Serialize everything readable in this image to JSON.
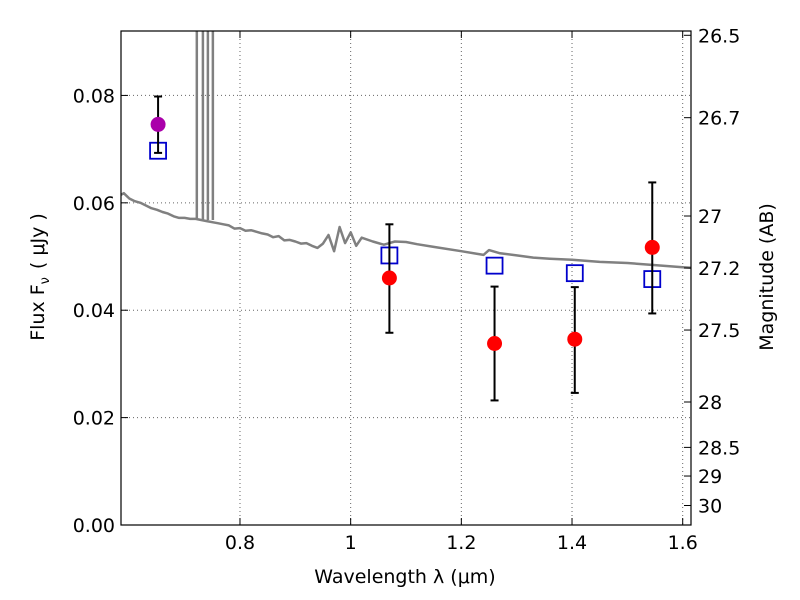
{
  "chart_data": {
    "type": "scatter",
    "xlabel": "Wavelength  λ (μm)",
    "ylabel_left": "Flux  F",
    "ylabel_left_sub": "ν",
    "ylabel_left_unit": "( μJy )",
    "ylabel_right": "Magnitude (AB)",
    "xlim": [
      0.585,
      1.615
    ],
    "ylim": [
      0.0,
      0.092
    ],
    "x_ticks": [
      0.8,
      1.0,
      1.2,
      1.4,
      1.6
    ],
    "x_tick_labels": [
      "0.8",
      "1",
      "1.2",
      "1.4",
      "1.6"
    ],
    "y_ticks": [
      0.0,
      0.02,
      0.04,
      0.06,
      0.08
    ],
    "y_tick_labels": [
      "0.00",
      "0.02",
      "0.04",
      "0.06",
      "0.08"
    ],
    "right_ticks_mag": [
      26.5,
      26.7,
      27,
      27.2,
      27.5,
      28,
      28.5,
      29,
      30
    ],
    "right_tick_labels": [
      "26.5",
      "26.7",
      "27",
      "27.2",
      "27.5",
      "28",
      "28.5",
      "29",
      "30"
    ],
    "grid": true,
    "series": [
      {
        "kind": "observed",
        "color": "#ff0000",
        "points": [
          {
            "x": 1.07,
            "y": 0.046,
            "yerr_low": 0.0358,
            "yerr_high": 0.056
          },
          {
            "x": 1.26,
            "y": 0.0338,
            "yerr_low": 0.0232,
            "yerr_high": 0.0444
          },
          {
            "x": 1.405,
            "y": 0.0346,
            "yerr_low": 0.0246,
            "yerr_high": 0.0443
          },
          {
            "x": 1.545,
            "y": 0.0517,
            "yerr_low": 0.0394,
            "yerr_high": 0.0638
          }
        ]
      },
      {
        "kind": "observed",
        "color": "#aa00aa",
        "points": [
          {
            "x": 0.652,
            "y": 0.0746,
            "yerr_low": 0.0693,
            "yerr_high": 0.0798
          }
        ]
      },
      {
        "kind": "model-photometry",
        "color": "#0000cc",
        "points": [
          {
            "x": 0.652,
            "y": 0.0697
          },
          {
            "x": 1.07,
            "y": 0.0502
          },
          {
            "x": 1.26,
            "y": 0.0483
          },
          {
            "x": 1.405,
            "y": 0.0469
          },
          {
            "x": 1.545,
            "y": 0.0458
          }
        ]
      },
      {
        "kind": "model-spectrum",
        "color": "#808080",
        "x": [
          0.585,
          0.59,
          0.6,
          0.61,
          0.62,
          0.63,
          0.64,
          0.65,
          0.66,
          0.67,
          0.68,
          0.69,
          0.7,
          0.71,
          0.72,
          0.73,
          0.74,
          0.75,
          0.76,
          0.77,
          0.78,
          0.79,
          0.8,
          0.81,
          0.82,
          0.83,
          0.84,
          0.85,
          0.86,
          0.87,
          0.88,
          0.89,
          0.9,
          0.91,
          0.92,
          0.93,
          0.94,
          0.95,
          0.96,
          0.97,
          0.98,
          0.99,
          1.0,
          1.01,
          1.02,
          1.04,
          1.06,
          1.08,
          1.1,
          1.12,
          1.15,
          1.2,
          1.24,
          1.25,
          1.27,
          1.3,
          1.33,
          1.36,
          1.4,
          1.45,
          1.5,
          1.55,
          1.6,
          1.615
        ],
        "y": [
          0.0615,
          0.0618,
          0.0608,
          0.0603,
          0.06,
          0.0595,
          0.059,
          0.0587,
          0.0583,
          0.058,
          0.0575,
          0.0572,
          0.0572,
          0.057,
          0.057,
          0.0568,
          0.0566,
          0.0564,
          0.0562,
          0.056,
          0.0558,
          0.0552,
          0.0553,
          0.0548,
          0.0549,
          0.0546,
          0.0543,
          0.0541,
          0.0536,
          0.0538,
          0.053,
          0.0531,
          0.0528,
          0.0524,
          0.0525,
          0.052,
          0.0516,
          0.0524,
          0.054,
          0.051,
          0.0555,
          0.0525,
          0.0545,
          0.052,
          0.0535,
          0.0528,
          0.0522,
          0.0528,
          0.0527,
          0.0523,
          0.0518,
          0.051,
          0.0503,
          0.0512,
          0.0506,
          0.0502,
          0.0498,
          0.0496,
          0.0494,
          0.049,
          0.0488,
          0.0484,
          0.048,
          0.0479
        ]
      },
      {
        "kind": "emission-lines",
        "color": "#808080",
        "x": [
          0.722,
          0.733,
          0.742,
          0.751
        ],
        "y_base": 0.0568
      }
    ]
  }
}
